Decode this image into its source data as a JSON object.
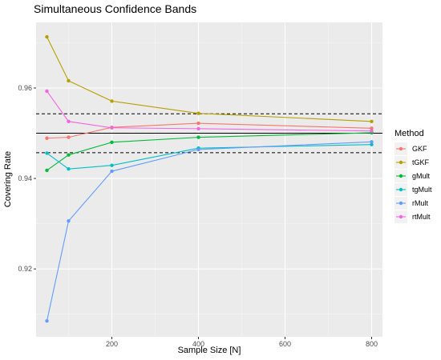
{
  "chart_data": {
    "type": "line",
    "title": "Simultaneous Confidence Bands",
    "xlabel": "Sample Size [N]",
    "ylabel": "Covering Rate",
    "xlim": [
      25,
      825
    ],
    "ylim": [
      0.905,
      0.9745
    ],
    "x_ticks": [
      200,
      400,
      600,
      800
    ],
    "y_ticks": [
      0.92,
      0.94,
      0.96
    ],
    "x_tick_labels": [
      "200",
      "400",
      "600",
      "800"
    ],
    "y_tick_labels": [
      "0.92",
      "0.94",
      "0.96"
    ],
    "grid": true,
    "legend": {
      "title": "Method",
      "position": "right"
    },
    "reference_lines": [
      {
        "y": 0.95,
        "style": "solid",
        "color": "#000000"
      },
      {
        "y": 0.9543,
        "style": "dashed",
        "color": "#000000"
      },
      {
        "y": 0.9457,
        "style": "dashed",
        "color": "#000000"
      }
    ],
    "x": [
      50,
      100,
      200,
      400,
      800
    ],
    "series": [
      {
        "name": "GKF",
        "color": "#F8766D",
        "values": [
          0.9489,
          0.9491,
          0.9513,
          0.9522,
          0.9511
        ]
      },
      {
        "name": "tGKF",
        "color": "#B79F00",
        "values": [
          0.9713,
          0.9616,
          0.9571,
          0.9544,
          0.9526
        ]
      },
      {
        "name": "gMult",
        "color": "#00BA38",
        "values": [
          0.9418,
          0.9452,
          0.948,
          0.9491,
          0.9501
        ]
      },
      {
        "name": "tgMult",
        "color": "#00BFC4",
        "values": [
          0.9456,
          0.9421,
          0.9429,
          0.9467,
          0.9475
        ]
      },
      {
        "name": "rMult",
        "color": "#619CFF",
        "values": [
          0.9085,
          0.9306,
          0.9416,
          0.9464,
          0.9481
        ]
      },
      {
        "name": "rtMult",
        "color": "#F564E3",
        "values": [
          0.9593,
          0.9526,
          0.9512,
          0.951,
          0.9505
        ]
      }
    ]
  }
}
